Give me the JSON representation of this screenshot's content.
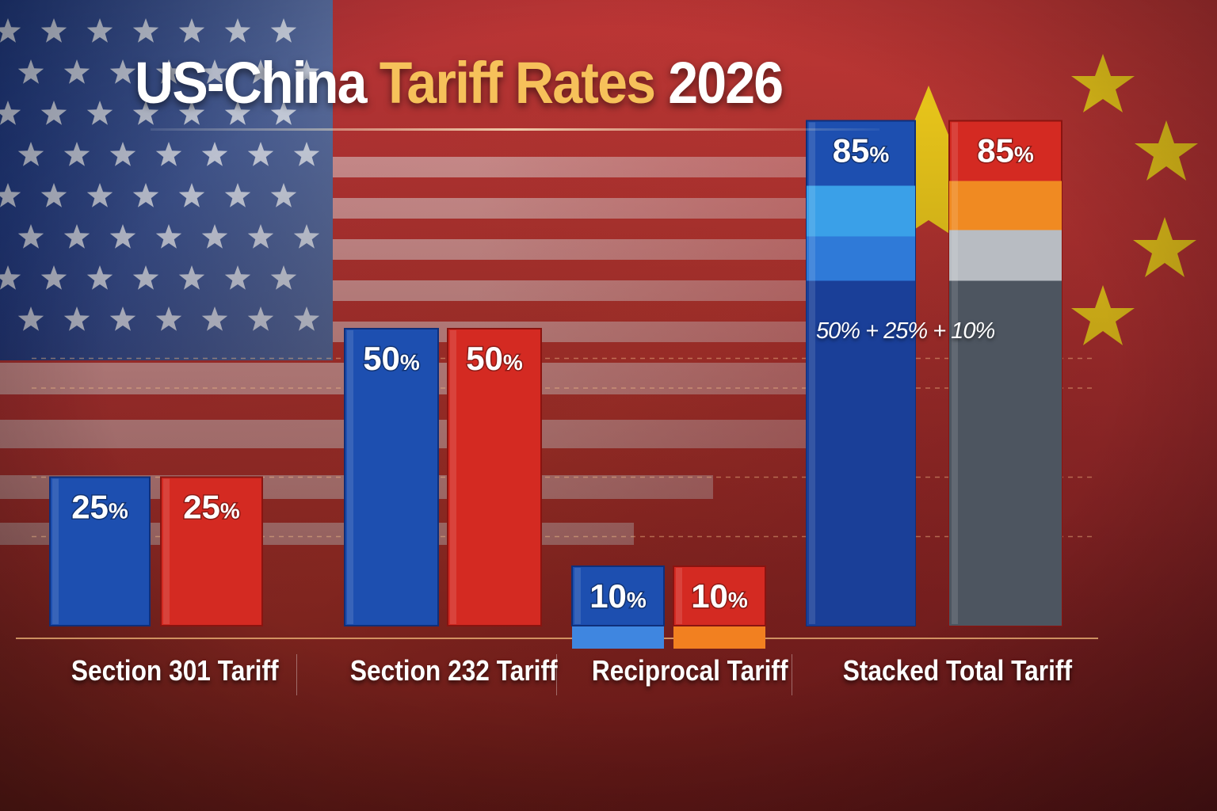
{
  "title": {
    "part1": "US-China",
    "part2": "Tariff Rates",
    "part3": "2026"
  },
  "annotation": "50% + 25% + 10%",
  "colors": {
    "us_blue": "#1d4fb0",
    "china_red": "#d42a22",
    "title_accent": "#f6c15a",
    "star_yellow": "#f7d21c"
  },
  "chart_data": {
    "type": "bar",
    "categories": [
      "Section 301 Tariff",
      "Section 232 Tariff",
      "Reciprocal Tariff",
      "Stacked Total Tariff"
    ],
    "series": [
      {
        "values": [
          25,
          50,
          10,
          85
        ],
        "color": "#1d4fb0"
      },
      {
        "values": [
          25,
          50,
          10,
          85
        ],
        "color": "#d42a22"
      }
    ],
    "value_labels": [
      [
        "25%",
        "50%",
        "10%",
        "85%"
      ],
      [
        "25%",
        "50%",
        "10%",
        "85%"
      ]
    ],
    "ylim": [
      0,
      100
    ],
    "grid": true,
    "legend": "none"
  }
}
